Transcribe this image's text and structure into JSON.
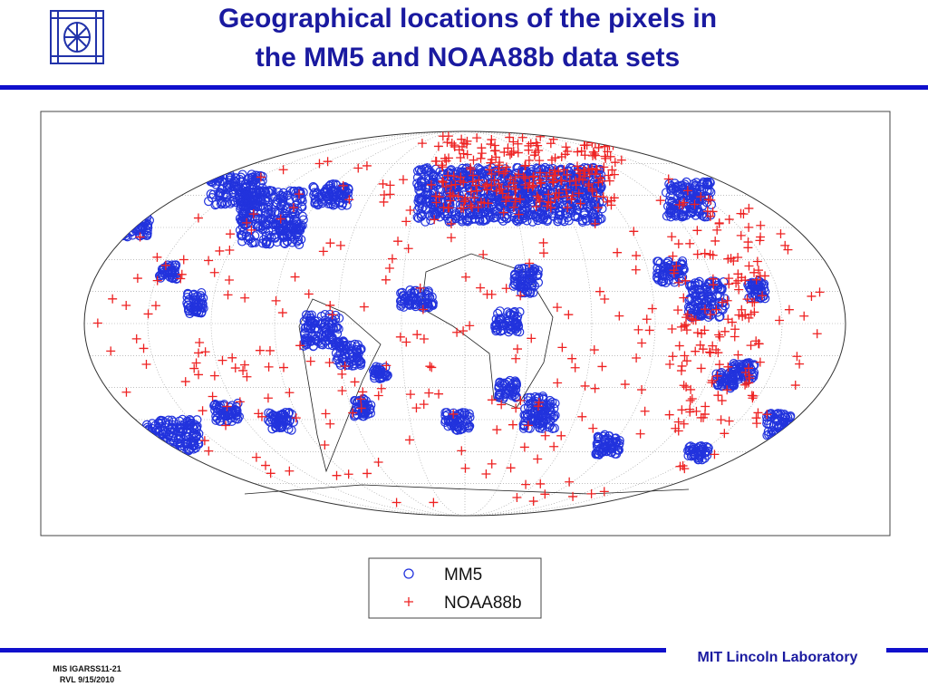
{
  "header": {
    "title_lines": [
      "Geographical locations of the pixels in",
      "the MM5 and NOAA88b data sets"
    ]
  },
  "legend": {
    "items": [
      "MM5",
      "NOAA88b"
    ]
  },
  "footer": {
    "lab": "MIT Lincoln Laboratory",
    "ids": [
      "MIS IGARSS11-21",
      "RVL 9/15/2010"
    ]
  }
}
